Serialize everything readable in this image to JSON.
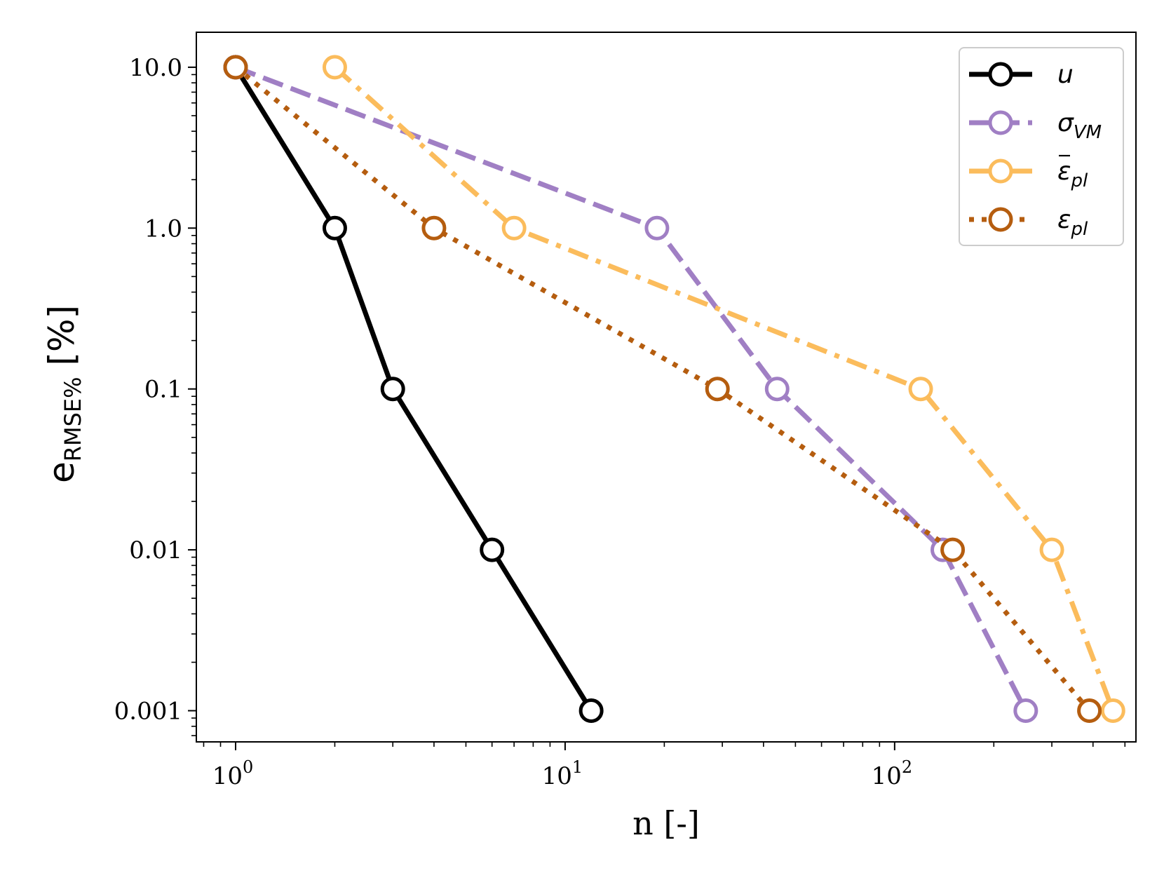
{
  "chart_data": {
    "type": "line",
    "xscale": "log",
    "yscale": "log",
    "xlim": [
      0.76,
      540
    ],
    "ylim": [
      0.00064,
      16.5
    ],
    "xlabel": "n [-]",
    "ylabel": {
      "main": "e",
      "sub": "RMSE%",
      "unit": " [%]"
    },
    "x_ticks": [
      {
        "value": 1,
        "base": "10",
        "exp": "0"
      },
      {
        "value": 10,
        "base": "10",
        "exp": "1"
      },
      {
        "value": 100,
        "base": "10",
        "exp": "2"
      }
    ],
    "y_ticks": [
      {
        "value": 10,
        "label": "10.0"
      },
      {
        "value": 1,
        "label": "1.0"
      },
      {
        "value": 0.1,
        "label": "0.1"
      },
      {
        "value": 0.01,
        "label": "0.01"
      },
      {
        "value": 0.001,
        "label": "0.001"
      }
    ],
    "legend_position": "top-right",
    "series": [
      {
        "name": "u",
        "symbol": "u",
        "subscript": "",
        "accent": "",
        "color": "#000000",
        "dash": "solid",
        "x": [
          1,
          2,
          3,
          6,
          12
        ],
        "y": [
          10,
          1,
          0.1,
          0.01,
          0.001
        ]
      },
      {
        "name": "σ_VM",
        "symbol": "σ",
        "subscript": "VM",
        "accent": "",
        "color": "#a07fc4",
        "dash": "dashed",
        "x": [
          1,
          19,
          44,
          140,
          250
        ],
        "y": [
          10,
          1,
          0.1,
          0.01,
          0.001
        ]
      },
      {
        "name": "ε̄_pl",
        "symbol": "ε",
        "subscript": "pl",
        "accent": "bar",
        "color": "#fbbc5c",
        "dash": "dashdot",
        "x": [
          2,
          7,
          120,
          300,
          460
        ],
        "y": [
          10,
          1,
          0.1,
          0.01,
          0.001
        ]
      },
      {
        "name": "ε_pl",
        "symbol": "ε",
        "subscript": "pl",
        "accent": "",
        "color": "#b55d0f",
        "dash": "dotted",
        "x": [
          1,
          4,
          29,
          150,
          390
        ],
        "y": [
          10,
          1,
          0.1,
          0.01,
          0.001
        ]
      }
    ]
  }
}
